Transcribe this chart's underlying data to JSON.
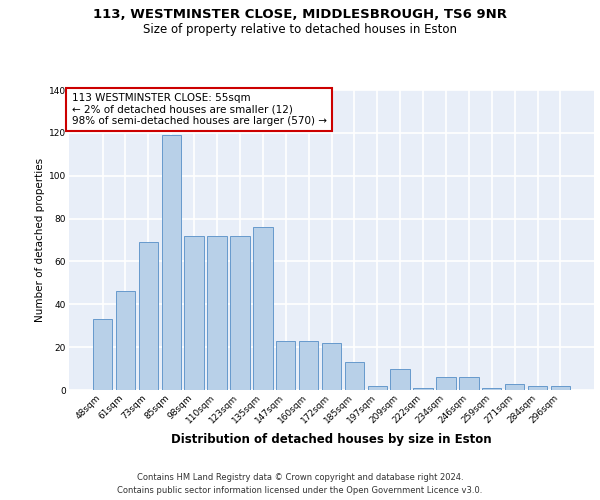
{
  "title_line1": "113, WESTMINSTER CLOSE, MIDDLESBROUGH, TS6 9NR",
  "title_line2": "Size of property relative to detached houses in Eston",
  "xlabel": "Distribution of detached houses by size in Eston",
  "ylabel": "Number of detached properties",
  "categories": [
    "48sqm",
    "61sqm",
    "73sqm",
    "85sqm",
    "98sqm",
    "110sqm",
    "123sqm",
    "135sqm",
    "147sqm",
    "160sqm",
    "172sqm",
    "185sqm",
    "197sqm",
    "209sqm",
    "222sqm",
    "234sqm",
    "246sqm",
    "259sqm",
    "271sqm",
    "284sqm",
    "296sqm"
  ],
  "values": [
    33,
    46,
    69,
    119,
    72,
    72,
    72,
    76,
    23,
    23,
    22,
    13,
    2,
    10,
    1,
    6,
    6,
    1,
    3,
    2,
    2
  ],
  "bar_color": "#b8d0e8",
  "bar_edge_color": "#6699cc",
  "annotation_box_text": "113 WESTMINSTER CLOSE: 55sqm\n← 2% of detached houses are smaller (12)\n98% of semi-detached houses are larger (570) →",
  "annotation_box_color": "#ffffff",
  "annotation_box_edge_color": "#cc0000",
  "ylim": [
    0,
    140
  ],
  "yticks": [
    0,
    20,
    40,
    60,
    80,
    100,
    120,
    140
  ],
  "background_color": "#e8eef8",
  "grid_color": "#ffffff",
  "footer_line1": "Contains HM Land Registry data © Crown copyright and database right 2024.",
  "footer_line2": "Contains public sector information licensed under the Open Government Licence v3.0.",
  "title_fontsize": 9.5,
  "subtitle_fontsize": 8.5,
  "xlabel_fontsize": 8.5,
  "ylabel_fontsize": 7.5,
  "tick_fontsize": 6.5,
  "annotation_fontsize": 7.5,
  "footer_fontsize": 6.0
}
